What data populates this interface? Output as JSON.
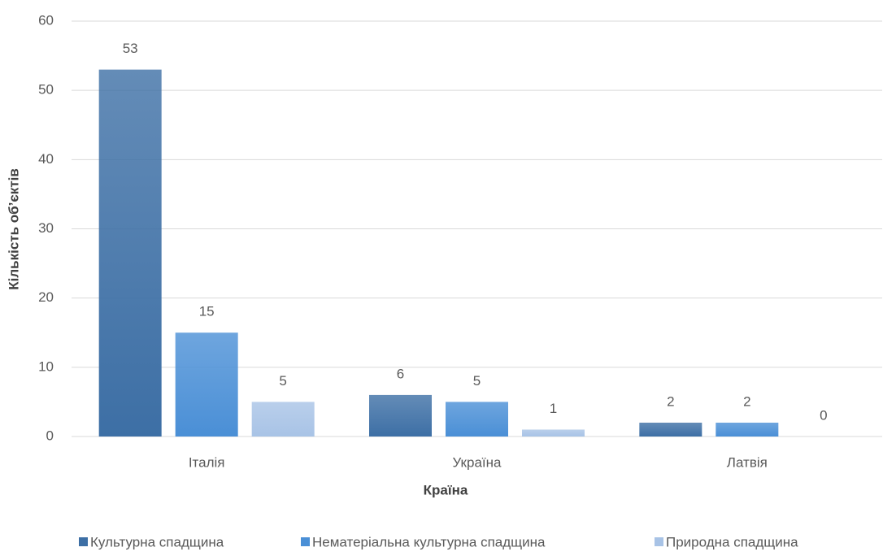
{
  "chart_data": {
    "type": "bar",
    "x_label": "Країна",
    "y_label": "Кількість об’єктів",
    "categories": [
      "Італія",
      "Україна",
      "Латвія"
    ],
    "series": [
      {
        "name": "Культурна спадщина",
        "color": "#3d6fa5",
        "values": [
          53,
          6,
          2
        ]
      },
      {
        "name": "Нематеріальна культурна спадщина",
        "color": "#4a8fd6",
        "values": [
          15,
          5,
          2
        ]
      },
      {
        "name": "Природна спадщина",
        "color": "#a8c3e6",
        "values": [
          5,
          1,
          0
        ]
      }
    ],
    "ylim": [
      0,
      60
    ],
    "yticks": [
      0,
      10,
      20,
      30,
      40,
      50,
      60
    ],
    "grid": true,
    "legend": "bottom"
  }
}
